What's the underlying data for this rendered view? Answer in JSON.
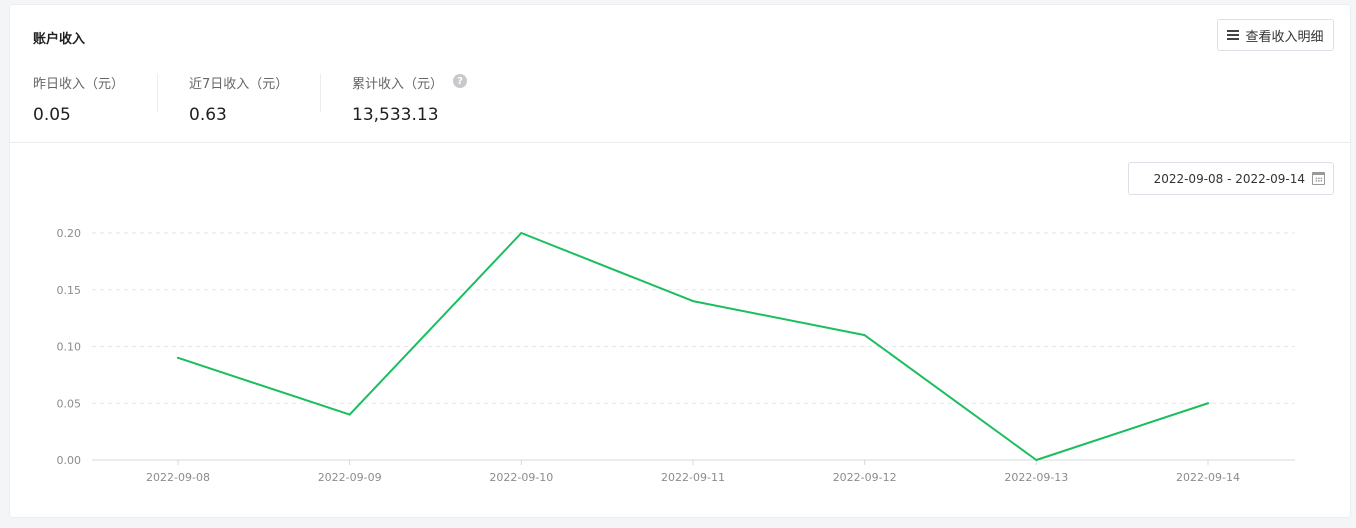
{
  "header": {
    "title": "账户收入",
    "detail_button": "查看收入明细",
    "detail_icon": "menu-icon"
  },
  "stats": [
    {
      "label": "昨日收入（元）",
      "value": "0.05"
    },
    {
      "label": "近7日收入（元）",
      "value": "0.63"
    },
    {
      "label": "累计收入（元）",
      "value": "13,533.13"
    }
  ],
  "help_icon": "?",
  "date_range": {
    "value": "2022-09-08 - 2022-09-14",
    "icon": "calendar-icon"
  },
  "chart_data": {
    "type": "line",
    "categories": [
      "2022-09-08",
      "2022-09-09",
      "2022-09-10",
      "2022-09-11",
      "2022-09-12",
      "2022-09-13",
      "2022-09-14"
    ],
    "values": [
      0.09,
      0.04,
      0.2,
      0.14,
      0.11,
      0.0,
      0.05
    ],
    "yticks": [
      "0.00",
      "0.05",
      "0.10",
      "0.15",
      "0.20"
    ],
    "ylim": [
      0,
      0.2
    ],
    "grid": true,
    "line_color": "#1bbe5f"
  }
}
